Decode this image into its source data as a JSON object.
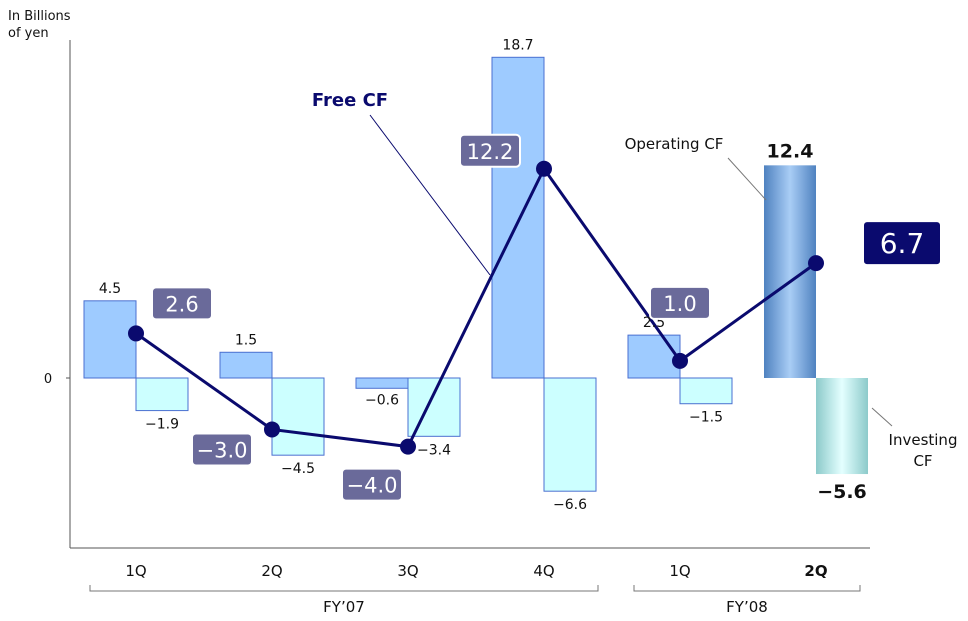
{
  "chart_data": {
    "type": "bar",
    "unit_label_line1": "In Billions",
    "unit_label_line2": "of yen",
    "categories": [
      "1Q",
      "2Q",
      "3Q",
      "4Q",
      "1Q",
      "2Q"
    ],
    "groups": [
      {
        "label": "FY’07",
        "categories": [
          "1Q",
          "2Q",
          "3Q",
          "4Q"
        ]
      },
      {
        "label": "FY’08",
        "categories": [
          "1Q",
          "2Q"
        ]
      }
    ],
    "series": [
      {
        "name": "Operating CF",
        "type": "bar",
        "values": [
          4.5,
          1.5,
          -0.6,
          18.7,
          2.5,
          12.4
        ],
        "labels": [
          "4.5",
          "1.5",
          "−0.6",
          "18.7",
          "2.5",
          "12.4"
        ]
      },
      {
        "name": "Investing CF",
        "type": "bar",
        "values": [
          -1.9,
          -4.5,
          -3.4,
          -6.6,
          -1.5,
          -5.6
        ],
        "labels": [
          "−1.9",
          "−4.5",
          "−3.4",
          "−6.6",
          "−1.5",
          "−5.6"
        ]
      },
      {
        "name": "Free CF",
        "type": "line",
        "values": [
          2.6,
          -3.0,
          -4.0,
          12.2,
          1.0,
          6.7
        ],
        "labels": [
          "2.6",
          "−3.0",
          "−4.0",
          "12.2",
          "1.0",
          "6.7"
        ]
      }
    ],
    "zero_label": "0",
    "investing_label_line1": "Investing",
    "investing_label_line2": "CF",
    "ylim": [
      -10,
      19
    ],
    "highlight_index": 5,
    "grid": false,
    "colors": {
      "operating": "#9ecbff",
      "investing": "#ccffff",
      "bar_border": "#4a6fd0",
      "free_cf_line": "#0a0a6e",
      "free_cf_label_bg": "#6a6a9a",
      "free_cf_highlight_bg": "#0a0a6e",
      "highlight_operating": "#6a9ad0",
      "highlight_investing": "#a8dcdc"
    }
  }
}
